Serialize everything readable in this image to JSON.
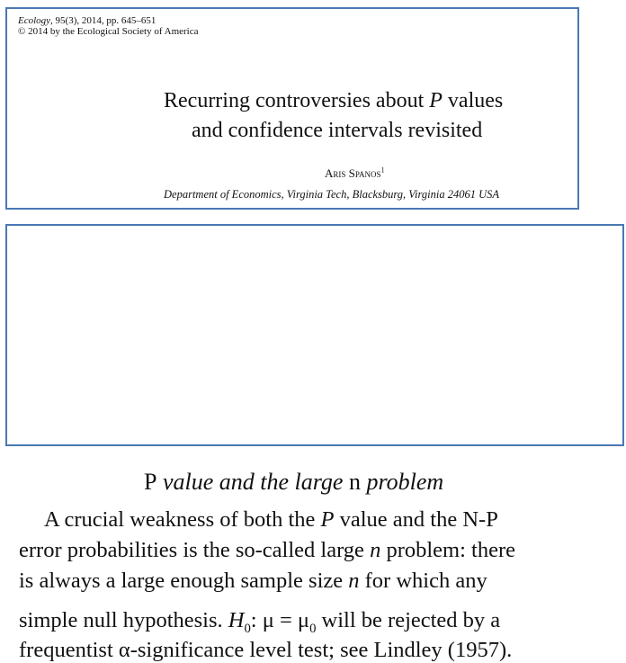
{
  "header": {
    "journal_name": "Ecology",
    "journal_citation": ", 95(3), 2014, pp. 645–651",
    "copyright": "© 2014 by the Ecological Society of America"
  },
  "article": {
    "title_line1_a": "Recurring controversies about ",
    "title_line1_p": "P",
    "title_line1_b": " values",
    "title_line2": "and confidence intervals revisited",
    "author_name": "Aris Spanos",
    "author_sup": "1",
    "affiliation": "Department of Economics, Virginia Tech, Blacksburg, Virginia 24061 USA"
  },
  "excerpt": {
    "heading_p": "P",
    "heading_a": " value and the large ",
    "heading_n": "n",
    "heading_b": " problem",
    "line1_a": "A crucial weakness of both the ",
    "line1_p": "P",
    "line1_b": " value and the N-P",
    "line2": "error probabilities is the so-called large ",
    "line2_n": "n",
    "line2_b": " problem: there",
    "line3_a": "is always a large enough sample size ",
    "line3_n": "n",
    "line3_b": " for which any",
    "line4_a": "simple null hypothesis. ",
    "line4_h": "H",
    "line4_sub": "0",
    "line4_b": ": μ = μ",
    "line4_sub2": "0",
    "line4_c": " will be rejected by a",
    "line5": "frequentist α-significance level test; see Lindley (1957)."
  }
}
